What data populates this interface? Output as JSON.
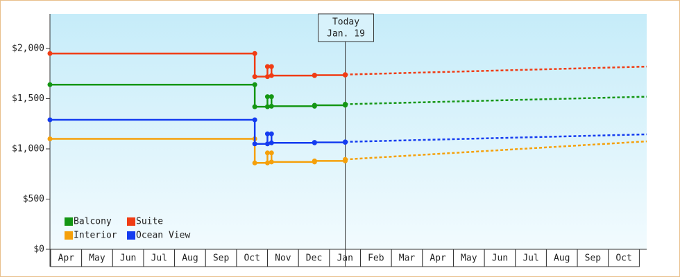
{
  "chart_data": {
    "type": "step-line",
    "categories": [
      "Apr",
      "May",
      "Jun",
      "Jul",
      "Aug",
      "Sep",
      "Oct",
      "Nov",
      "Dec",
      "Jan",
      "Feb",
      "Mar",
      "Apr",
      "May",
      "Jun",
      "Jul",
      "Aug",
      "Sep",
      "Oct"
    ],
    "xlim": [
      0,
      19.26
    ],
    "ylim": [
      0,
      2345
    ],
    "yticks": [
      {
        "value": 0,
        "label": "$0"
      },
      {
        "value": 500,
        "label": "$500"
      },
      {
        "value": 1000,
        "label": "$1,000"
      },
      {
        "value": 1500,
        "label": "$1,500"
      },
      {
        "value": 2000,
        "label": "$2,000"
      }
    ],
    "annotation": {
      "x": 9.53,
      "lines": [
        "Today",
        "Jan. 19"
      ]
    },
    "series": [
      {
        "name": "Balcony",
        "color": "#149614",
        "x": [
          0,
          6.61,
          7.02,
          7.15,
          8.54,
          9.53
        ],
        "values": [
          1640,
          1420,
          1520,
          1425,
          1435,
          1445
        ],
        "forecast_x": [
          9.53,
          19.26
        ],
        "forecast_values": [
          1445,
          1520
        ]
      },
      {
        "name": "Suite",
        "color": "#f03c14",
        "x": [
          0,
          6.61,
          7.02,
          7.15,
          8.54,
          9.53
        ],
        "values": [
          1950,
          1720,
          1820,
          1730,
          1735,
          1740
        ],
        "forecast_x": [
          9.53,
          19.26
        ],
        "forecast_values": [
          1740,
          1820
        ]
      },
      {
        "name": "Interior",
        "color": "#f5a00a",
        "x": [
          0,
          6.61,
          7.02,
          7.15,
          8.54,
          9.53
        ],
        "values": [
          1100,
          860,
          960,
          870,
          880,
          895
        ],
        "forecast_x": [
          9.53,
          19.26
        ],
        "forecast_values": [
          895,
          1075
        ]
      },
      {
        "name": "Ocean View",
        "color": "#143cf0",
        "x": [
          0,
          6.61,
          7.02,
          7.15,
          8.54,
          9.53
        ],
        "values": [
          1290,
          1050,
          1150,
          1060,
          1065,
          1070
        ],
        "forecast_x": [
          9.53,
          19.26
        ],
        "forecast_values": [
          1070,
          1145
        ]
      }
    ]
  }
}
